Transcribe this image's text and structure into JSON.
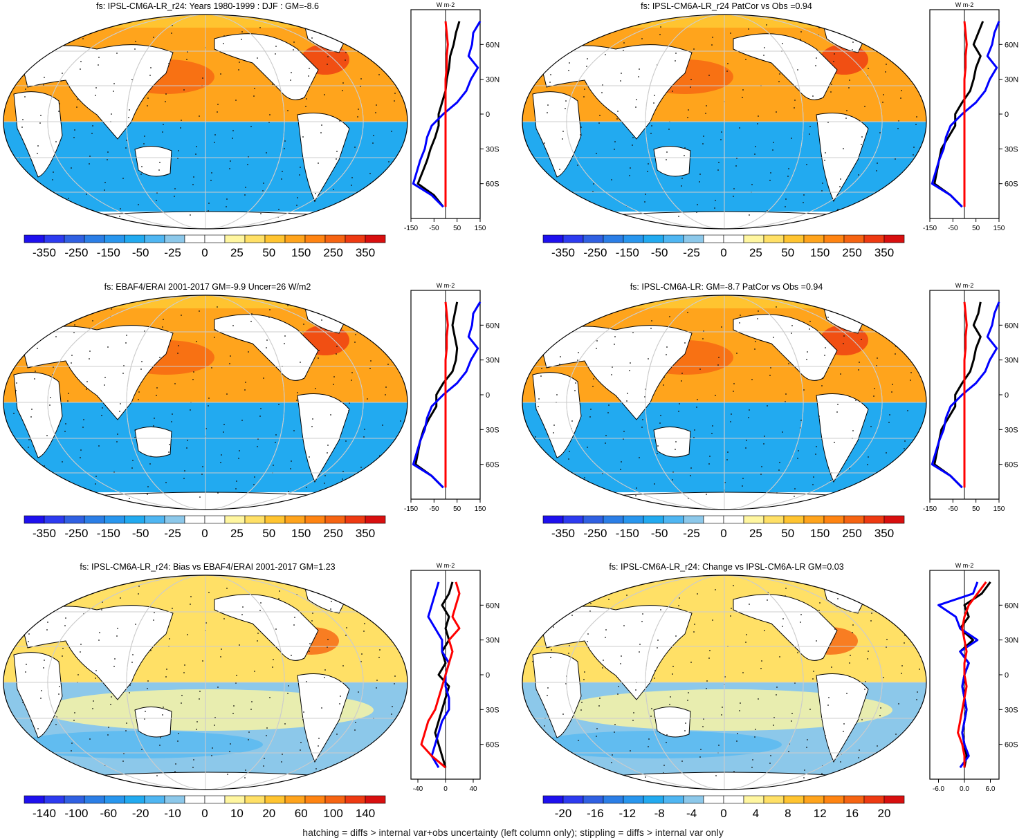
{
  "footer": "hatching = diffs > internal var+obs uncertainty (left column only); stippling = diffs > internal var only",
  "colors": {
    "model": "#000000",
    "obs_a": "#0000ff",
    "obs_b": "#ff0000",
    "palette": [
      "#1e10ee",
      "#2d3bf0",
      "#3060e2",
      "#2b7ee6",
      "#2896ee",
      "#22aaf0",
      "#4fb6f2",
      "#8cc8ea",
      "#ffffff",
      "#ffffff",
      "#fff6a0",
      "#ffe066",
      "#ffc430",
      "#ffa41c",
      "#ff8412",
      "#f66412",
      "#ee3a12",
      "#d80f0f"
    ]
  },
  "chart_data": [
    {
      "type": "heatmap",
      "title": "fs: IPSL-CM6A-LR_r24: Years 1980-1999 : DJF : GM=-8.6",
      "colorbar_labels": [
        "-350",
        "-250",
        "-150",
        "-50",
        "-25",
        "0",
        "25",
        "50",
        "150",
        "250",
        "350"
      ],
      "profile": {
        "unit": "W m-2",
        "x_ticks": [
          "-150",
          "-50",
          "50",
          "150"
        ],
        "xlim": [
          -150,
          150
        ],
        "y_ticks": [
          "60N",
          "30N",
          "0",
          "30S",
          "60S"
        ],
        "lat": [
          80,
          70,
          60,
          50,
          40,
          30,
          20,
          10,
          0,
          -10,
          -20,
          -30,
          -40,
          -50,
          -60,
          -70,
          -80
        ],
        "series": [
          {
            "values": [
              60,
              45,
              35,
              20,
              15,
              5,
              0,
              -15,
              -30,
              -30,
              -45,
              -65,
              -80,
              -100,
              -120,
              -50,
              -10
            ]
          },
          {
            "values": [
              150,
              120,
              115,
              100,
              140,
              110,
              90,
              50,
              -10,
              -60,
              -80,
              -90,
              -110,
              -125,
              -140,
              -60,
              -10
            ]
          },
          {
            "values": [
              0,
              5,
              10,
              5,
              5,
              0,
              0,
              0,
              0,
              0,
              0,
              0,
              0,
              0,
              0,
              0,
              0
            ]
          }
        ]
      }
    },
    {
      "type": "heatmap",
      "title": "fs: IPSL-CM6A-LR_r24 PatCor vs Obs =0.94",
      "colorbar_labels": [
        "-350",
        "-250",
        "-150",
        "-50",
        "-25",
        "0",
        "25",
        "50",
        "150",
        "250",
        "350"
      ],
      "profile": {
        "unit": "W m-2",
        "x_ticks": [
          "-150",
          "-50",
          "50",
          "150"
        ],
        "xlim": [
          -150,
          150
        ],
        "y_ticks": [
          "60N",
          "30N",
          "0",
          "30S",
          "60S"
        ],
        "lat": [
          80,
          70,
          60,
          50,
          40,
          30,
          20,
          10,
          0,
          -10,
          -20,
          -30,
          -40,
          -50,
          -60,
          -70,
          -80
        ],
        "series": [
          {
            "values": [
              80,
              60,
              40,
              70,
              50,
              40,
              25,
              -10,
              -40,
              -40,
              -70,
              -100,
              -110,
              -120,
              -130,
              -60,
              -10
            ]
          },
          {
            "values": [
              150,
              130,
              120,
              100,
              140,
              110,
              90,
              50,
              -10,
              -60,
              -80,
              -90,
              -110,
              -125,
              -140,
              -60,
              -10
            ]
          },
          {
            "values": [
              0,
              5,
              10,
              5,
              5,
              0,
              0,
              0,
              0,
              0,
              0,
              0,
              0,
              0,
              0,
              0,
              0
            ]
          }
        ]
      }
    },
    {
      "type": "heatmap",
      "title": "fs: EBAF4/ERAI 2001-2017 GM=-9.9 Uncer=26 W/m2",
      "colorbar_labels": [
        "-350",
        "-250",
        "-150",
        "-50",
        "-25",
        "0",
        "25",
        "50",
        "150",
        "250",
        "350"
      ],
      "profile": {
        "unit": "W m-2",
        "x_ticks": [
          "-150",
          "-50",
          "50",
          "150"
        ],
        "xlim": [
          -150,
          150
        ],
        "y_ticks": [
          "60N",
          "30N",
          "0",
          "30S",
          "60S"
        ],
        "lat": [
          80,
          70,
          60,
          50,
          40,
          30,
          20,
          10,
          0,
          -10,
          -20,
          -30,
          -40,
          -50,
          -60,
          -70,
          -80
        ],
        "series": [
          {
            "values": [
              50,
              40,
              30,
              40,
              50,
              45,
              30,
              -10,
              -40,
              -40,
              -70,
              -95,
              -110,
              -120,
              -130,
              -60,
              -10
            ]
          },
          {
            "values": [
              150,
              120,
              115,
              100,
              140,
              110,
              90,
              50,
              -10,
              -60,
              -80,
              -90,
              -110,
              -125,
              -140,
              -60,
              -10
            ]
          },
          {
            "values": [
              0,
              5,
              10,
              5,
              5,
              0,
              0,
              0,
              0,
              0,
              0,
              0,
              0,
              0,
              0,
              0,
              0
            ]
          }
        ]
      }
    },
    {
      "type": "heatmap",
      "title": "fs: IPSL-CM6A-LR: GM=-8.7 PatCor vs Obs =0.94",
      "colorbar_labels": [
        "-350",
        "-250",
        "-150",
        "-50",
        "-25",
        "0",
        "25",
        "50",
        "150",
        "250",
        "350"
      ],
      "profile": {
        "unit": "W m-2",
        "x_ticks": [
          "-150",
          "-50",
          "50",
          "150"
        ],
        "xlim": [
          -150,
          150
        ],
        "y_ticks": [
          "60N",
          "30N",
          "0",
          "30S",
          "60S"
        ],
        "lat": [
          80,
          70,
          60,
          50,
          40,
          30,
          20,
          10,
          0,
          -10,
          -20,
          -30,
          -40,
          -50,
          -60,
          -70,
          -80
        ],
        "series": [
          {
            "values": [
              70,
              60,
              40,
              70,
              50,
              40,
              25,
              -10,
              -40,
              -40,
              -70,
              -100,
              -110,
              -120,
              -130,
              -60,
              -10
            ]
          },
          {
            "values": [
              150,
              130,
              120,
              100,
              140,
              110,
              90,
              50,
              -10,
              -60,
              -80,
              -90,
              -110,
              -125,
              -140,
              -60,
              -10
            ]
          },
          {
            "values": [
              0,
              5,
              10,
              5,
              5,
              0,
              0,
              0,
              0,
              0,
              0,
              0,
              0,
              0,
              0,
              0,
              0
            ]
          }
        ]
      }
    },
    {
      "type": "heatmap",
      "title": "fs: IPSL-CM6A-LR_r24: Bias vs EBAF4/ERAI 2001-2017 GM=1.23",
      "colorbar_labels": [
        "-140",
        "-100",
        "-60",
        "-20",
        "-10",
        "0",
        "10",
        "20",
        "60",
        "100",
        "140"
      ],
      "profile": {
        "unit": "W m-2",
        "x_ticks": [
          "-40",
          "0",
          "40"
        ],
        "xlim": [
          -50,
          50
        ],
        "y_ticks": [
          "60N",
          "30N",
          "0",
          "30S",
          "60S"
        ],
        "lat": [
          80,
          70,
          60,
          50,
          40,
          30,
          20,
          10,
          0,
          -10,
          -20,
          -30,
          -40,
          -50,
          -60,
          -70,
          -80
        ],
        "series": [
          {
            "values": [
              10,
              5,
              -5,
              5,
              0,
              5,
              -5,
              0,
              -10,
              5,
              0,
              -5,
              -10,
              -15,
              -10,
              -5,
              0
            ]
          },
          {
            "values": [
              -10,
              -15,
              -20,
              -25,
              -15,
              -5,
              -5,
              5,
              0,
              0,
              5,
              5,
              -5,
              -10,
              -15,
              -20,
              -10
            ]
          },
          {
            "values": [
              15,
              20,
              15,
              10,
              20,
              5,
              10,
              5,
              0,
              -5,
              -10,
              -15,
              -25,
              -30,
              -35,
              -20,
              0
            ]
          }
        ]
      }
    },
    {
      "type": "heatmap",
      "title": "fs: IPSL-CM6A-LR_r24: Change vs IPSL-CM6A-LR GM=0.03",
      "colorbar_labels": [
        "-20",
        "-16",
        "-12",
        "-8",
        "-4",
        "0",
        "4",
        "8",
        "12",
        "16",
        "20"
      ],
      "profile": {
        "unit": "W m-2",
        "x_ticks": [
          "-6.0",
          "0.0",
          "6.0"
        ],
        "xlim": [
          -8,
          8
        ],
        "y_ticks": [
          "60N",
          "30N",
          "0",
          "30S",
          "60S"
        ],
        "lat": [
          80,
          70,
          60,
          50,
          40,
          30,
          20,
          10,
          0,
          -10,
          -20,
          -30,
          -40,
          -50,
          -60,
          -70,
          -80
        ],
        "series": [
          {
            "values": [
              6,
              4,
              0,
              1,
              -1,
              2,
              -1,
              1,
              0,
              -0.5,
              0,
              0.5,
              0,
              -0.5,
              0,
              0.5,
              0
            ]
          },
          {
            "values": [
              3,
              2,
              -6,
              -2,
              -1,
              3,
              -1,
              1,
              0,
              -0.5,
              0,
              0.5,
              0,
              -0.5,
              0,
              1,
              -1
            ]
          },
          {
            "values": [
              5,
              3,
              1,
              0,
              -0.5,
              0,
              0.5,
              0,
              0,
              0.5,
              0,
              -0.5,
              -1,
              -1.5,
              -0.5,
              0,
              0
            ]
          }
        ]
      }
    }
  ]
}
